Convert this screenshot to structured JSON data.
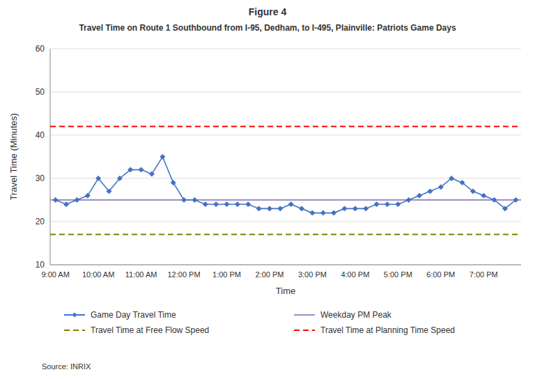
{
  "chart_data": {
    "type": "line",
    "title": "Figure 4",
    "subtitle": "Travel Time on Route 1 Southbound from I-95, Dedham, to I-495, Plainville: Patriots Game Days",
    "x_label": "Time",
    "y_label": "Travel Time (Minutes)",
    "source": "Source: INRIX",
    "categories": [
      "9:00 AM",
      null,
      null,
      null,
      "10:00 AM",
      null,
      null,
      null,
      "11:00 AM",
      null,
      null,
      null,
      "12:00 PM",
      null,
      null,
      null,
      "1:00 PM",
      null,
      null,
      null,
      "2:00 PM",
      null,
      null,
      null,
      "3:00 PM",
      null,
      null,
      null,
      "4:00 PM",
      null,
      null,
      null,
      "5:00 PM",
      null,
      null,
      null,
      "6:00 PM",
      null,
      null,
      null,
      "7:00 PM",
      null,
      null,
      null
    ],
    "series": [
      {
        "name": "Game Day Travel Time",
        "color": "#4472C4",
        "marker": "diamond",
        "line_style": "solid",
        "values": [
          25,
          24,
          25,
          26,
          30,
          27,
          30,
          32,
          32,
          31,
          35,
          29,
          25,
          25,
          24,
          24,
          24,
          24,
          24,
          23,
          23,
          23,
          24,
          23,
          22,
          22,
          22,
          23,
          23,
          23,
          24,
          24,
          24,
          25,
          26,
          27,
          28,
          30,
          29,
          27,
          26,
          25,
          23,
          25
        ]
      }
    ],
    "reference_lines": [
      {
        "name": "Weekday PM Peak",
        "value": 25,
        "color": "#9B8EC4",
        "line_style": "solid"
      },
      {
        "name": "Travel Time at Free Flow Speed",
        "value": 17,
        "color": "#7F7F00",
        "line_style": "dashed"
      },
      {
        "name": "Travel Time at Planning Time Speed",
        "value": 42,
        "color": "#FF0000",
        "line_style": "dashed"
      }
    ],
    "ylim": [
      10,
      60
    ],
    "yticks": [
      10,
      20,
      30,
      40,
      50,
      60
    ],
    "grid": true,
    "legend": "bottom"
  }
}
